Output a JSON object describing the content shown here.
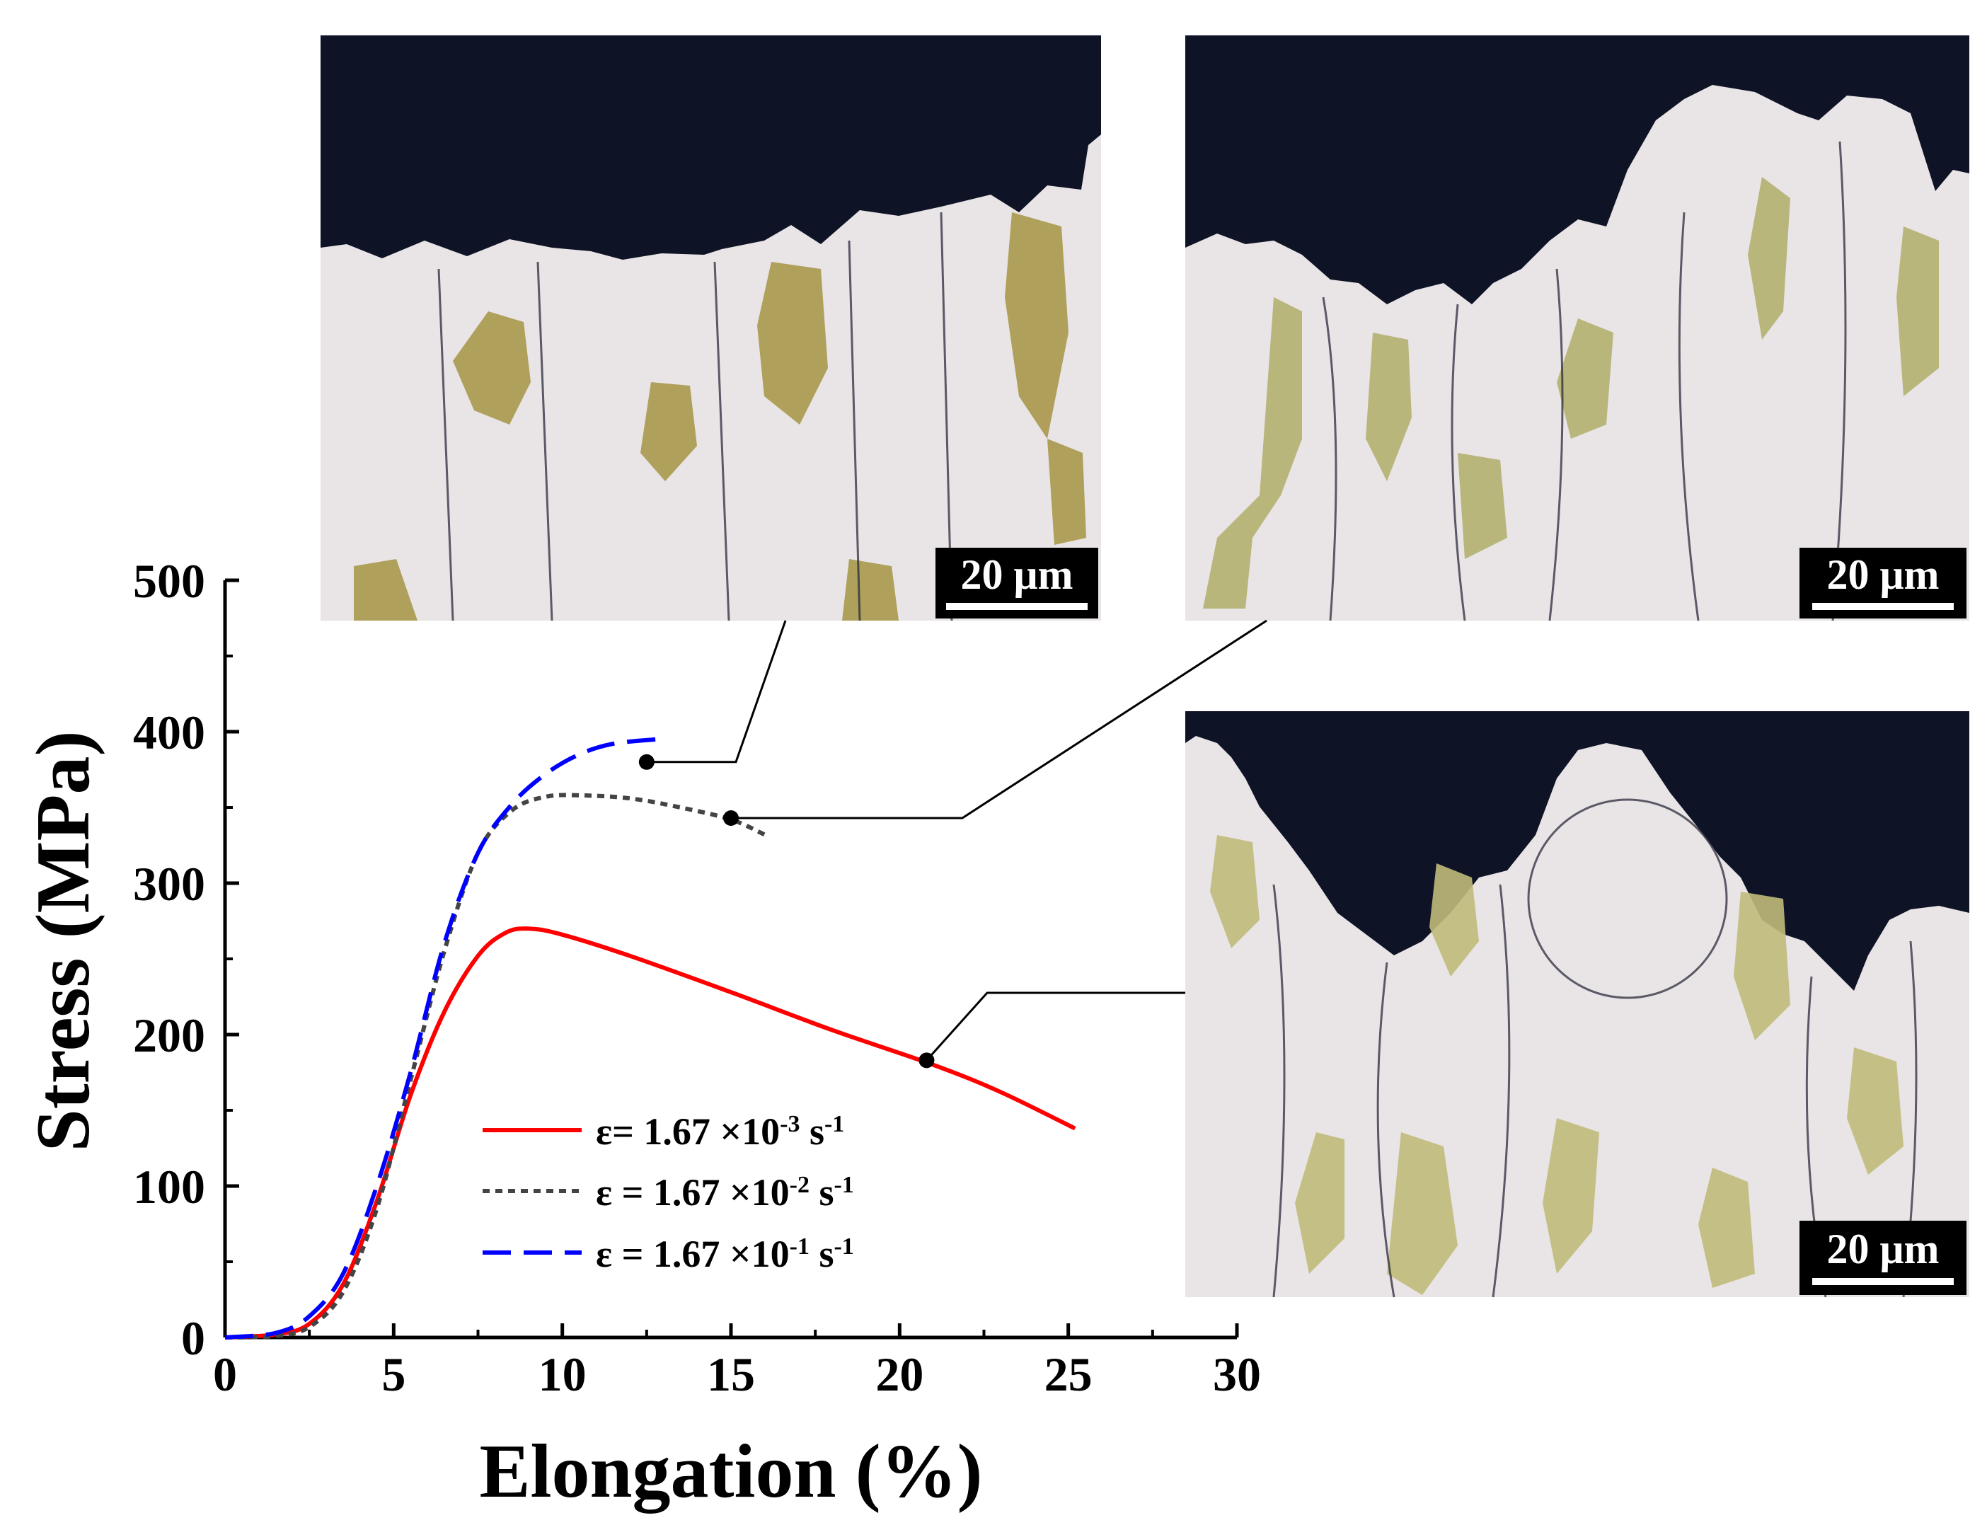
{
  "chart_data": {
    "type": "line",
    "title": "",
    "xlabel": "Elongation (%)",
    "ylabel": "Stress (MPa)",
    "xlim": [
      0,
      30
    ],
    "ylim": [
      0,
      500
    ],
    "xticks": [
      "0",
      "5",
      "10",
      "15",
      "20",
      "25",
      "30"
    ],
    "yticks": [
      "0",
      "100",
      "200",
      "300",
      "400",
      "500"
    ],
    "grid": false,
    "legend_position": "bottom-center",
    "series": [
      {
        "name_parts": [
          "ε",
          "= 1.67 ×10",
          "-3",
          " s",
          "-1"
        ],
        "color": "#ff0000",
        "style": "solid",
        "x": [
          0,
          1.5,
          2.5,
          3.5,
          4.5,
          5.5,
          6.5,
          7.5,
          8.3,
          9.0,
          10.0,
          12.0,
          15.0,
          18.0,
          21.0,
          23.0,
          25.2
        ],
        "y": [
          0,
          2,
          9,
          35,
          90,
          160,
          215,
          252,
          267,
          270,
          266,
          252,
          228,
          203,
          180,
          162,
          138
        ]
      },
      {
        "name_parts": [
          "ε",
          " = 1.67 ×10",
          "-2",
          " s",
          "-1"
        ],
        "color": "#444444",
        "style": "dotted",
        "x": [
          0,
          1.5,
          2.5,
          3.5,
          4.5,
          5.5,
          6.5,
          7.5,
          8.5,
          9.5,
          10.5,
          12.0,
          13.5,
          15.0,
          16.0
        ],
        "y": [
          0,
          1,
          7,
          30,
          85,
          170,
          255,
          320,
          348,
          357,
          358,
          356,
          350,
          342,
          332
        ]
      },
      {
        "name_parts": [
          "ε",
          " = 1.67 ×10",
          "-1",
          " s",
          "-1"
        ],
        "color": "#0000ff",
        "style": "dashed",
        "x": [
          0,
          1.5,
          2.5,
          3.5,
          4.5,
          5.5,
          6.5,
          7.5,
          8.5,
          9.5,
          10.5,
          11.5,
          12.8
        ],
        "y": [
          0,
          3,
          14,
          42,
          100,
          175,
          260,
          320,
          352,
          372,
          385,
          392,
          395
        ]
      }
    ],
    "annotations": [
      {
        "series": 2,
        "x": 12.5,
        "y": 380,
        "target": "micrograph-top-left"
      },
      {
        "series": 1,
        "x": 15.0,
        "y": 343,
        "target": "micrograph-top-right"
      },
      {
        "series": 0,
        "x": 20.8,
        "y": 183,
        "target": "micrograph-bottom-right"
      }
    ]
  },
  "micrographs": [
    {
      "id": "top-left",
      "scale_bar": "20 μm"
    },
    {
      "id": "top-right",
      "scale_bar": "20 μm"
    },
    {
      "id": "bottom-right",
      "scale_bar": "20 μm"
    }
  ]
}
